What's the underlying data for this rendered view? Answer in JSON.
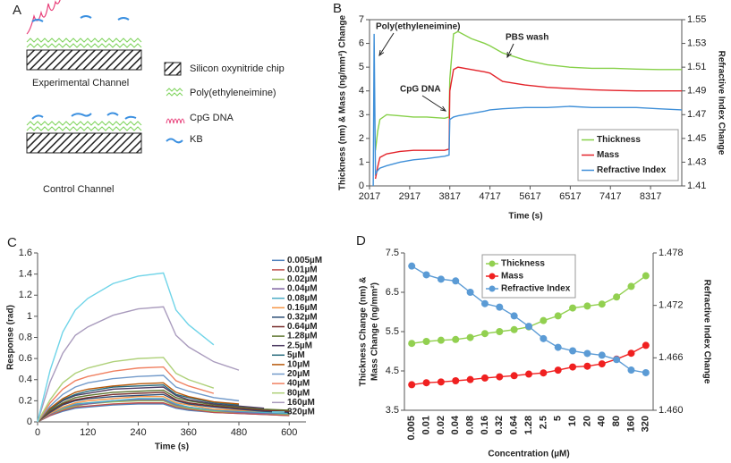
{
  "panel_labels": [
    "A",
    "B",
    "C",
    "D"
  ],
  "diagram": {
    "legend": [
      "Silicon oxynitride chip",
      "Poly(ethyleneimine)",
      "CpG DNA",
      "KB"
    ],
    "channels": [
      "Experimental Channel",
      "Control Channel"
    ]
  },
  "chart_data": [
    {
      "type": "line",
      "x_label": "Time (s)",
      "y_label": "Thickness (nm) & Mass (ng/mm²) Change",
      "y2_label": "Refractive Index Change",
      "x": [
        2100,
        2120,
        2150,
        2200,
        2250,
        2400,
        2700,
        3000,
        3300,
        3700,
        3800,
        3817,
        3900,
        4000,
        4300,
        4600,
        4717,
        5000,
        5500,
        6000,
        6500,
        7000,
        7500,
        8000,
        8500,
        9017
      ],
      "xlim": [
        2017,
        9017
      ],
      "xticks": [
        2017,
        2917,
        3817,
        4717,
        5617,
        6517,
        7417,
        8317
      ],
      "ylim": [
        0,
        7
      ],
      "yticks": [
        0,
        1,
        2,
        3,
        4,
        5,
        6,
        7
      ],
      "y2lim": [
        1.41,
        1.55
      ],
      "y2ticks": [
        1.41,
        1.43,
        1.45,
        1.47,
        1.49,
        1.51,
        1.53,
        1.55
      ],
      "legend": "lower right",
      "annotations": [
        "Poly(ethyleneimine)",
        "CpG DNA",
        "PBS wash"
      ],
      "series": [
        {
          "name": "Thickness",
          "color": "#86d048",
          "values": [
            null,
            null,
            1.5,
            2.3,
            2.8,
            3.0,
            2.95,
            2.9,
            2.9,
            2.85,
            2.9,
            4.5,
            6.4,
            6.5,
            6.2,
            6.0,
            5.9,
            5.6,
            5.3,
            5.1,
            5.0,
            4.95,
            4.95,
            4.92,
            4.9,
            4.9
          ]
        },
        {
          "name": "Mass",
          "color": "#e3232a",
          "values": [
            null,
            null,
            0.3,
            0.8,
            1.2,
            1.35,
            1.45,
            1.5,
            1.5,
            1.5,
            1.55,
            4.0,
            4.9,
            5.0,
            4.9,
            4.8,
            4.75,
            4.4,
            4.25,
            4.15,
            4.1,
            4.05,
            4.02,
            4.0,
            4.0,
            4.0
          ]
        },
        {
          "name": "Refractive Index",
          "color": "#3f8fd8",
          "axis": "y2",
          "values": [
            1.41,
            1.538,
            1.42,
            1.423,
            1.425,
            1.427,
            1.43,
            1.432,
            1.433,
            1.435,
            1.436,
            1.466,
            1.468,
            1.469,
            1.471,
            1.473,
            1.474,
            1.475,
            1.476,
            1.476,
            1.477,
            1.476,
            1.476,
            1.476,
            1.475,
            1.474
          ]
        }
      ]
    },
    {
      "type": "line",
      "x_label": "Time (s)",
      "y_label": "Response (rad)",
      "x": [
        0,
        30,
        60,
        90,
        120,
        180,
        240,
        300,
        330,
        360,
        420,
        480,
        540,
        600
      ],
      "xlim": [
        0,
        640
      ],
      "xticks": [
        0,
        120,
        240,
        360,
        480,
        600
      ],
      "ylim": [
        0,
        1.6
      ],
      "yticks": [
        0,
        0.2,
        0.4,
        0.6,
        0.8,
        1,
        1.2,
        1.4,
        1.6
      ],
      "legend": "right",
      "series": [
        {
          "name": "0.005µM",
          "color": "#4f81bd",
          "values": [
            0,
            0.06,
            0.1,
            0.13,
            0.14,
            0.16,
            0.17,
            0.17,
            0.13,
            0.11,
            0.09,
            0.08,
            0.07,
            0.06
          ]
        },
        {
          "name": "0.01µM",
          "color": "#c0504d",
          "values": [
            0,
            0.06,
            0.11,
            0.14,
            0.15,
            0.17,
            0.18,
            0.18,
            0.14,
            0.12,
            0.09,
            0.08,
            0.07,
            0.06
          ]
        },
        {
          "name": "0.02µM",
          "color": "#9bbb59",
          "values": [
            0,
            0.07,
            0.12,
            0.15,
            0.17,
            0.19,
            0.2,
            0.2,
            0.15,
            0.13,
            0.1,
            0.09,
            0.08,
            0.07
          ]
        },
        {
          "name": "0.04µM",
          "color": "#8064a2",
          "values": [
            0,
            0.07,
            0.13,
            0.16,
            0.17,
            0.2,
            0.21,
            0.21,
            0.16,
            0.14,
            0.11,
            0.09,
            0.08,
            0.08
          ]
        },
        {
          "name": "0.08µM",
          "color": "#4bacc6",
          "values": [
            0,
            0.08,
            0.13,
            0.17,
            0.18,
            0.2,
            0.22,
            0.22,
            0.17,
            0.14,
            0.11,
            0.1,
            0.09,
            0.08
          ]
        },
        {
          "name": "0.16µM",
          "color": "#f79646",
          "values": [
            0,
            0.08,
            0.14,
            0.18,
            0.2,
            0.22,
            0.24,
            0.24,
            0.18,
            0.16,
            0.12,
            0.11,
            0.1,
            0.09
          ]
        },
        {
          "name": "0.32µM",
          "color": "#2c4d75",
          "values": [
            0,
            0.09,
            0.16,
            0.2,
            0.22,
            0.24,
            0.25,
            0.26,
            0.2,
            0.17,
            0.14,
            0.12,
            0.1,
            0.09
          ]
        },
        {
          "name": "0.64µM",
          "color": "#772c2a",
          "values": [
            0,
            0.1,
            0.17,
            0.21,
            0.23,
            0.26,
            0.27,
            0.28,
            0.21,
            0.18,
            0.15,
            0.13,
            0.11,
            0.1
          ]
        },
        {
          "name": "1.28µM",
          "color": "#5f7530",
          "values": [
            0,
            0.11,
            0.18,
            0.23,
            0.25,
            0.28,
            0.29,
            0.3,
            0.23,
            0.2,
            0.16,
            0.14,
            0.12,
            0.11
          ]
        },
        {
          "name": "2.5µM",
          "color": "#4d3b62",
          "values": [
            0,
            0.12,
            0.2,
            0.25,
            0.27,
            0.31,
            0.32,
            0.33,
            0.25,
            0.21,
            0.17,
            0.15,
            0.13,
            null
          ]
        },
        {
          "name": "5µM",
          "color": "#276a7c",
          "values": [
            0,
            0.12,
            0.21,
            0.26,
            0.29,
            0.33,
            0.34,
            0.35,
            0.26,
            0.23,
            0.18,
            0.16,
            null,
            null
          ]
        },
        {
          "name": "10µM",
          "color": "#b65708",
          "values": [
            0,
            0.13,
            0.22,
            0.28,
            0.31,
            0.34,
            0.36,
            0.37,
            0.28,
            0.24,
            0.19,
            0.17,
            null,
            null
          ]
        },
        {
          "name": "20µM",
          "color": "#729aca",
          "values": [
            0,
            0.15,
            0.26,
            0.33,
            0.37,
            0.41,
            0.43,
            0.44,
            0.33,
            0.29,
            0.23,
            0.2,
            null,
            null
          ]
        },
        {
          "name": "40µM",
          "color": "#f08060",
          "values": [
            0,
            0.18,
            0.31,
            0.39,
            0.43,
            0.48,
            0.51,
            0.52,
            0.39,
            0.34,
            0.27,
            null,
            null,
            null
          ]
        },
        {
          "name": "80µM",
          "color": "#afd17a",
          "values": [
            0,
            0.21,
            0.37,
            0.46,
            0.51,
            0.57,
            0.6,
            0.61,
            0.46,
            0.4,
            0.32,
            null,
            null,
            null
          ]
        },
        {
          "name": "160µM",
          "color": "#a99bbd",
          "values": [
            0,
            0.38,
            0.65,
            0.82,
            0.9,
            1.01,
            1.07,
            1.09,
            0.82,
            0.71,
            0.57,
            0.49,
            null,
            null
          ]
        },
        {
          "name": "320µM",
          "color": "#6fd4e8",
          "values": [
            0,
            0.49,
            0.85,
            1.06,
            1.17,
            1.31,
            1.38,
            1.41,
            1.06,
            0.92,
            0.73,
            null,
            null,
            null
          ]
        }
      ]
    },
    {
      "type": "line",
      "x_label": "Concentration (µM)",
      "y_label": [
        "Thickness Change (nm) &",
        "Mass Change (ng/mm²)"
      ],
      "y2_label": "Refractive Index Change",
      "categories": [
        "0.005",
        "0.01",
        "0.02",
        "0.04",
        "0.08",
        "0.16",
        "0.32",
        "0.64",
        "1.28",
        "2.5",
        "5",
        "10",
        "20",
        "40",
        "80",
        "160",
        "320"
      ],
      "ylim": [
        3.5,
        7.5
      ],
      "yticks": [
        3.5,
        4.5,
        5.5,
        6.5,
        7.5
      ],
      "y2lim": [
        1.46,
        1.478
      ],
      "y2ticks": [
        {
          "value": 1.46,
          "label": "1.460"
        },
        {
          "value": 1.466,
          "label": "1.466"
        },
        {
          "value": 1.472,
          "label": "1.472"
        },
        {
          "value": 1.478,
          "label": "1.478"
        }
      ],
      "legend": "upper center",
      "markers": true,
      "series": [
        {
          "name": "Thickness",
          "color": "#92d050",
          "values": [
            5.2,
            5.25,
            5.28,
            5.3,
            5.35,
            5.45,
            5.5,
            5.55,
            5.62,
            5.78,
            5.9,
            6.1,
            6.15,
            6.2,
            6.38,
            6.65,
            6.92
          ]
        },
        {
          "name": "Mass",
          "color": "#f02020",
          "values": [
            4.15,
            4.2,
            4.22,
            4.25,
            4.28,
            4.32,
            4.35,
            4.38,
            4.42,
            4.45,
            4.52,
            4.6,
            4.62,
            4.68,
            4.8,
            4.95,
            5.15
          ]
        },
        {
          "name": "Refractive Index",
          "color": "#5b9bd5",
          "axis": "y2",
          "values": [
            1.4765,
            1.4755,
            1.475,
            1.4748,
            1.4735,
            1.4722,
            1.4718,
            1.4708,
            1.4696,
            1.4682,
            1.4672,
            1.4668,
            1.4665,
            1.4663,
            1.4658,
            1.4646,
            1.4643
          ]
        }
      ]
    }
  ]
}
